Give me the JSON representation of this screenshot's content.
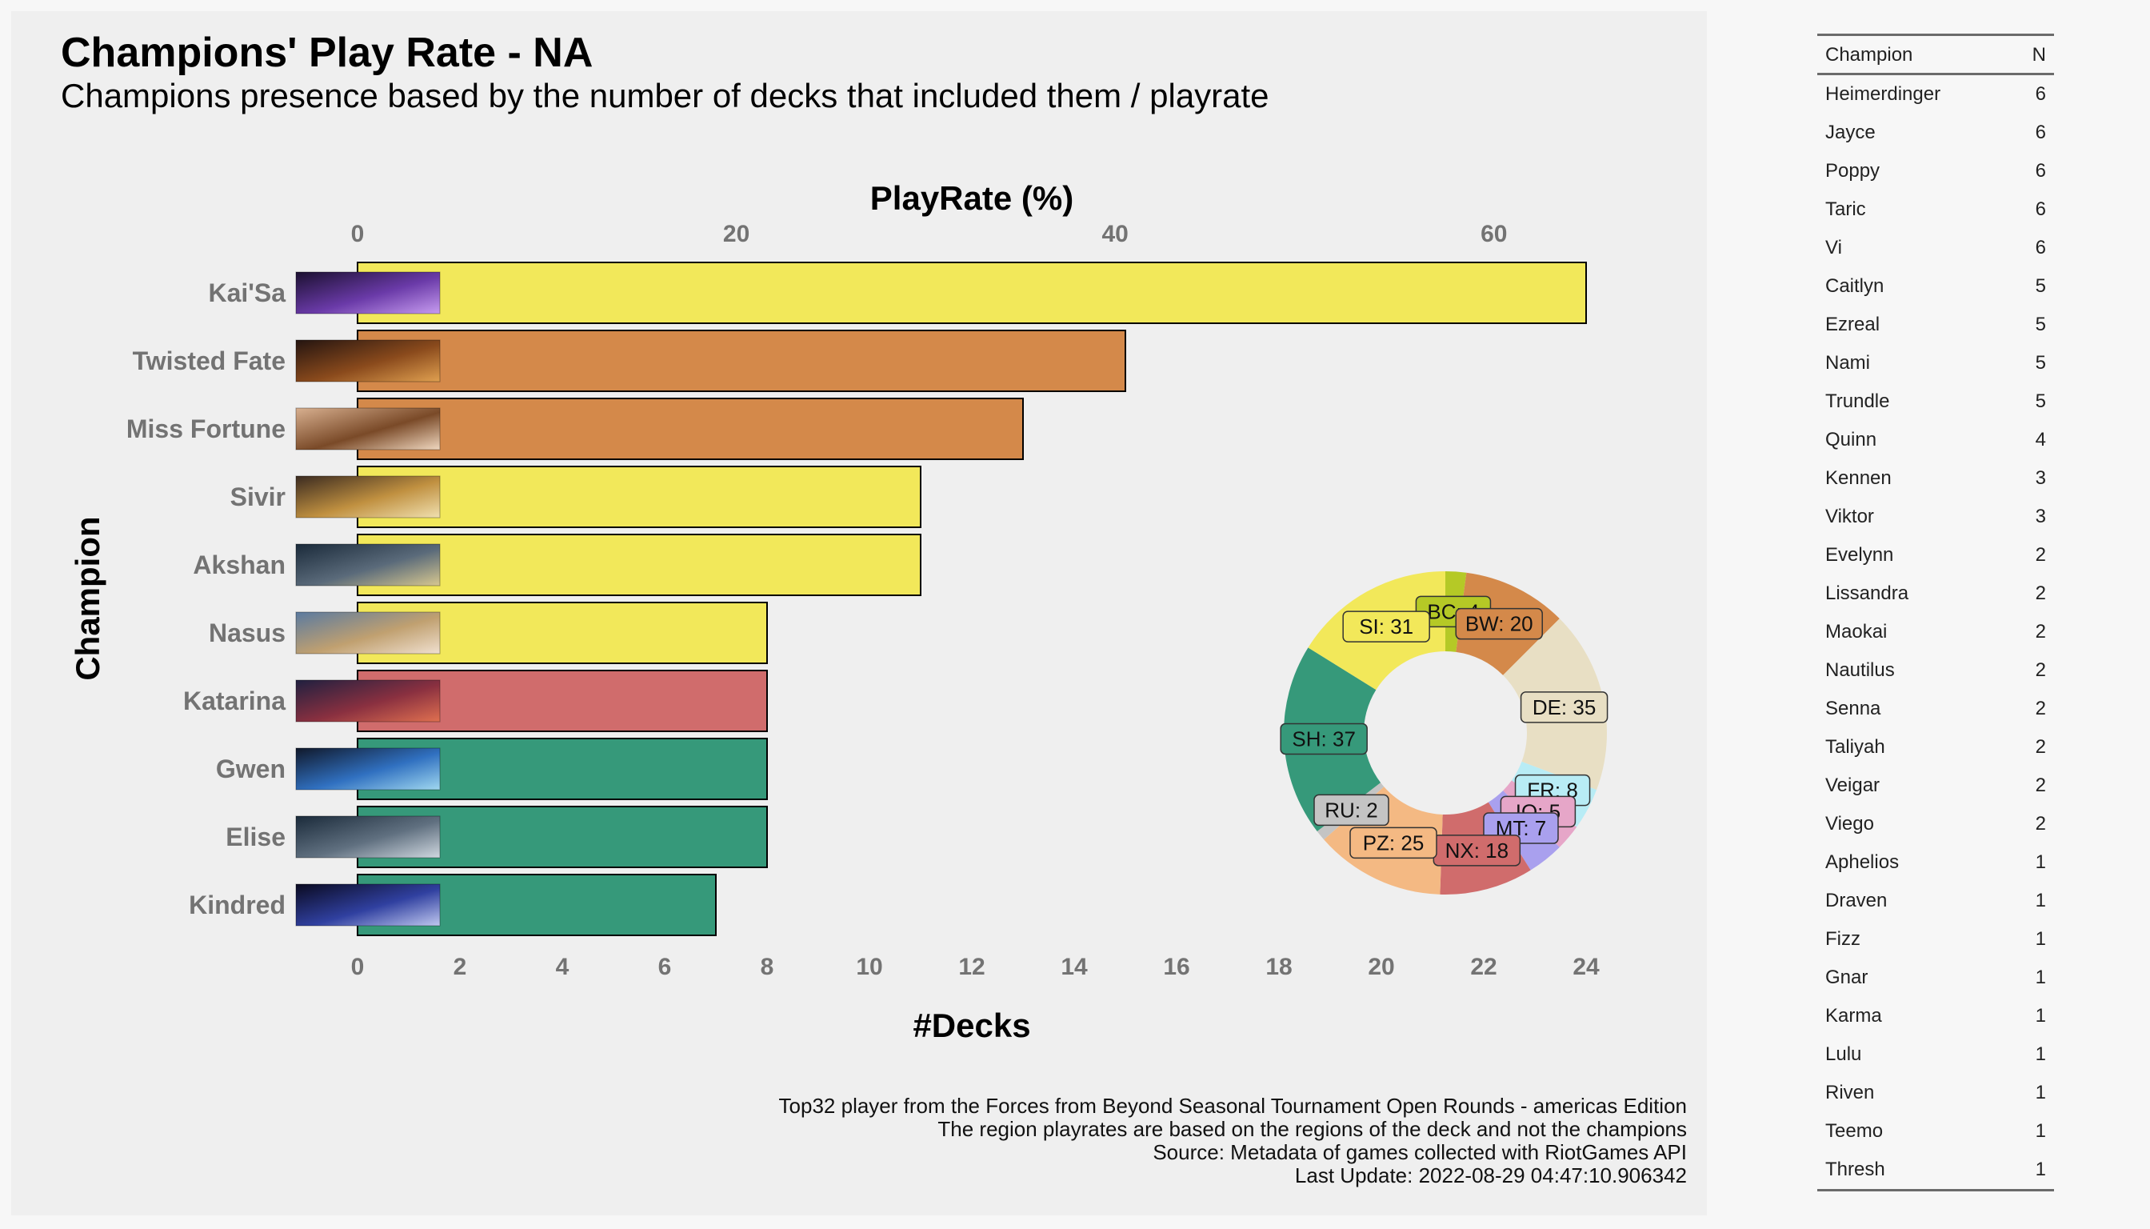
{
  "title": "Champions' Play Rate - NA",
  "subtitle": "Champions presence based by the number of decks that included them / playrate",
  "caption": [
    "Top32 player from the Forces from Beyond Seasonal Tournament Open Rounds - americas Edition",
    "The region playrates are based on the regions of the deck and not the champions",
    "Source: Metadata of games collected with RiotGames API",
    "Last Update: 2022-08-29 04:47:10.906342"
  ],
  "chart_data": [
    {
      "type": "bar",
      "orientation": "horizontal",
      "xlabel": "#Decks",
      "ylabel": "Champion",
      "x2label": "PlayRate (%)",
      "xlim": [
        0,
        24
      ],
      "xticks": [
        0,
        2,
        4,
        6,
        8,
        10,
        12,
        14,
        16,
        18,
        20,
        22,
        24
      ],
      "x2ticks": [
        0,
        20,
        40,
        60
      ],
      "x2_per_x": 2.7027,
      "categories": [
        "Kai'Sa",
        "Twisted Fate",
        "Miss Fortune",
        "Sivir",
        "Akshan",
        "Nasus",
        "Katarina",
        "Gwen",
        "Elise",
        "Kindred"
      ],
      "values": [
        24,
        15,
        13,
        11,
        11,
        8,
        8,
        8,
        8,
        7
      ],
      "colors": [
        "#f2e85a",
        "#d4894a",
        "#d4894a",
        "#f2e85a",
        "#f2e85a",
        "#f2e85a",
        "#d06c6c",
        "#36997a",
        "#36997a",
        "#36997a"
      ],
      "thumb_colors": [
        [
          "#1b1030",
          "#6a3aa8",
          "#c79cf0"
        ],
        [
          "#241410",
          "#8a4a1c",
          "#e0a050"
        ],
        [
          "#d8b090",
          "#7a4a28",
          "#f0d8c0"
        ],
        [
          "#3a2a20",
          "#c09040",
          "#f0e0b0"
        ],
        [
          "#1a2a3a",
          "#5a6a7a",
          "#d8c890"
        ],
        [
          "#5a7aa0",
          "#c0a070",
          "#f0e0d0"
        ],
        [
          "#202040",
          "#8a3040",
          "#e07050"
        ],
        [
          "#10182a",
          "#3070c0",
          "#a0d8f0"
        ],
        [
          "#1a2a3a",
          "#607080",
          "#d0d8e0"
        ],
        [
          "#0a0a20",
          "#3040a0",
          "#c0c8f0"
        ]
      ]
    },
    {
      "type": "pie",
      "donut": true,
      "labels": [
        "BC",
        "BW",
        "DE",
        "FR",
        "IO",
        "MT",
        "NX",
        "PZ",
        "RU",
        "SH",
        "SI"
      ],
      "values": [
        4,
        20,
        35,
        8,
        5,
        7,
        18,
        25,
        2,
        37,
        31
      ],
      "slice_labels": [
        "BC: 4",
        "BW: 20",
        "DE: 35",
        "FR: 8",
        "IO: 5",
        "MT: 7",
        "NX: 18",
        "PZ: 25",
        "RU: 2",
        "SH: 37",
        "SI: 31"
      ],
      "colors": [
        "#b5c926",
        "#d4894a",
        "#e8dfc4",
        "#b8ecf5",
        "#e6a6c8",
        "#a9a0ee",
        "#d06c6c",
        "#f4b983",
        "#c4c4c4",
        "#36997a",
        "#f2e85a"
      ]
    },
    {
      "type": "table",
      "columns": [
        "Champion",
        "N"
      ],
      "rows": [
        [
          "Heimerdinger",
          "6"
        ],
        [
          "Jayce",
          "6"
        ],
        [
          "Poppy",
          "6"
        ],
        [
          "Taric",
          "6"
        ],
        [
          "Vi",
          "6"
        ],
        [
          "Caitlyn",
          "5"
        ],
        [
          "Ezreal",
          "5"
        ],
        [
          "Nami",
          "5"
        ],
        [
          "Trundle",
          "5"
        ],
        [
          "Quinn",
          "4"
        ],
        [
          "Kennen",
          "3"
        ],
        [
          "Viktor",
          "3"
        ],
        [
          "Evelynn",
          "2"
        ],
        [
          "Lissandra",
          "2"
        ],
        [
          "Maokai",
          "2"
        ],
        [
          "Nautilus",
          "2"
        ],
        [
          "Senna",
          "2"
        ],
        [
          "Taliyah",
          "2"
        ],
        [
          "Veigar",
          "2"
        ],
        [
          "Viego",
          "2"
        ],
        [
          "Aphelios",
          "1"
        ],
        [
          "Draven",
          "1"
        ],
        [
          "Fizz",
          "1"
        ],
        [
          "Gnar",
          "1"
        ],
        [
          "Karma",
          "1"
        ],
        [
          "Lulu",
          "1"
        ],
        [
          "Riven",
          "1"
        ],
        [
          "Teemo",
          "1"
        ],
        [
          "Thresh",
          "1"
        ]
      ]
    }
  ]
}
